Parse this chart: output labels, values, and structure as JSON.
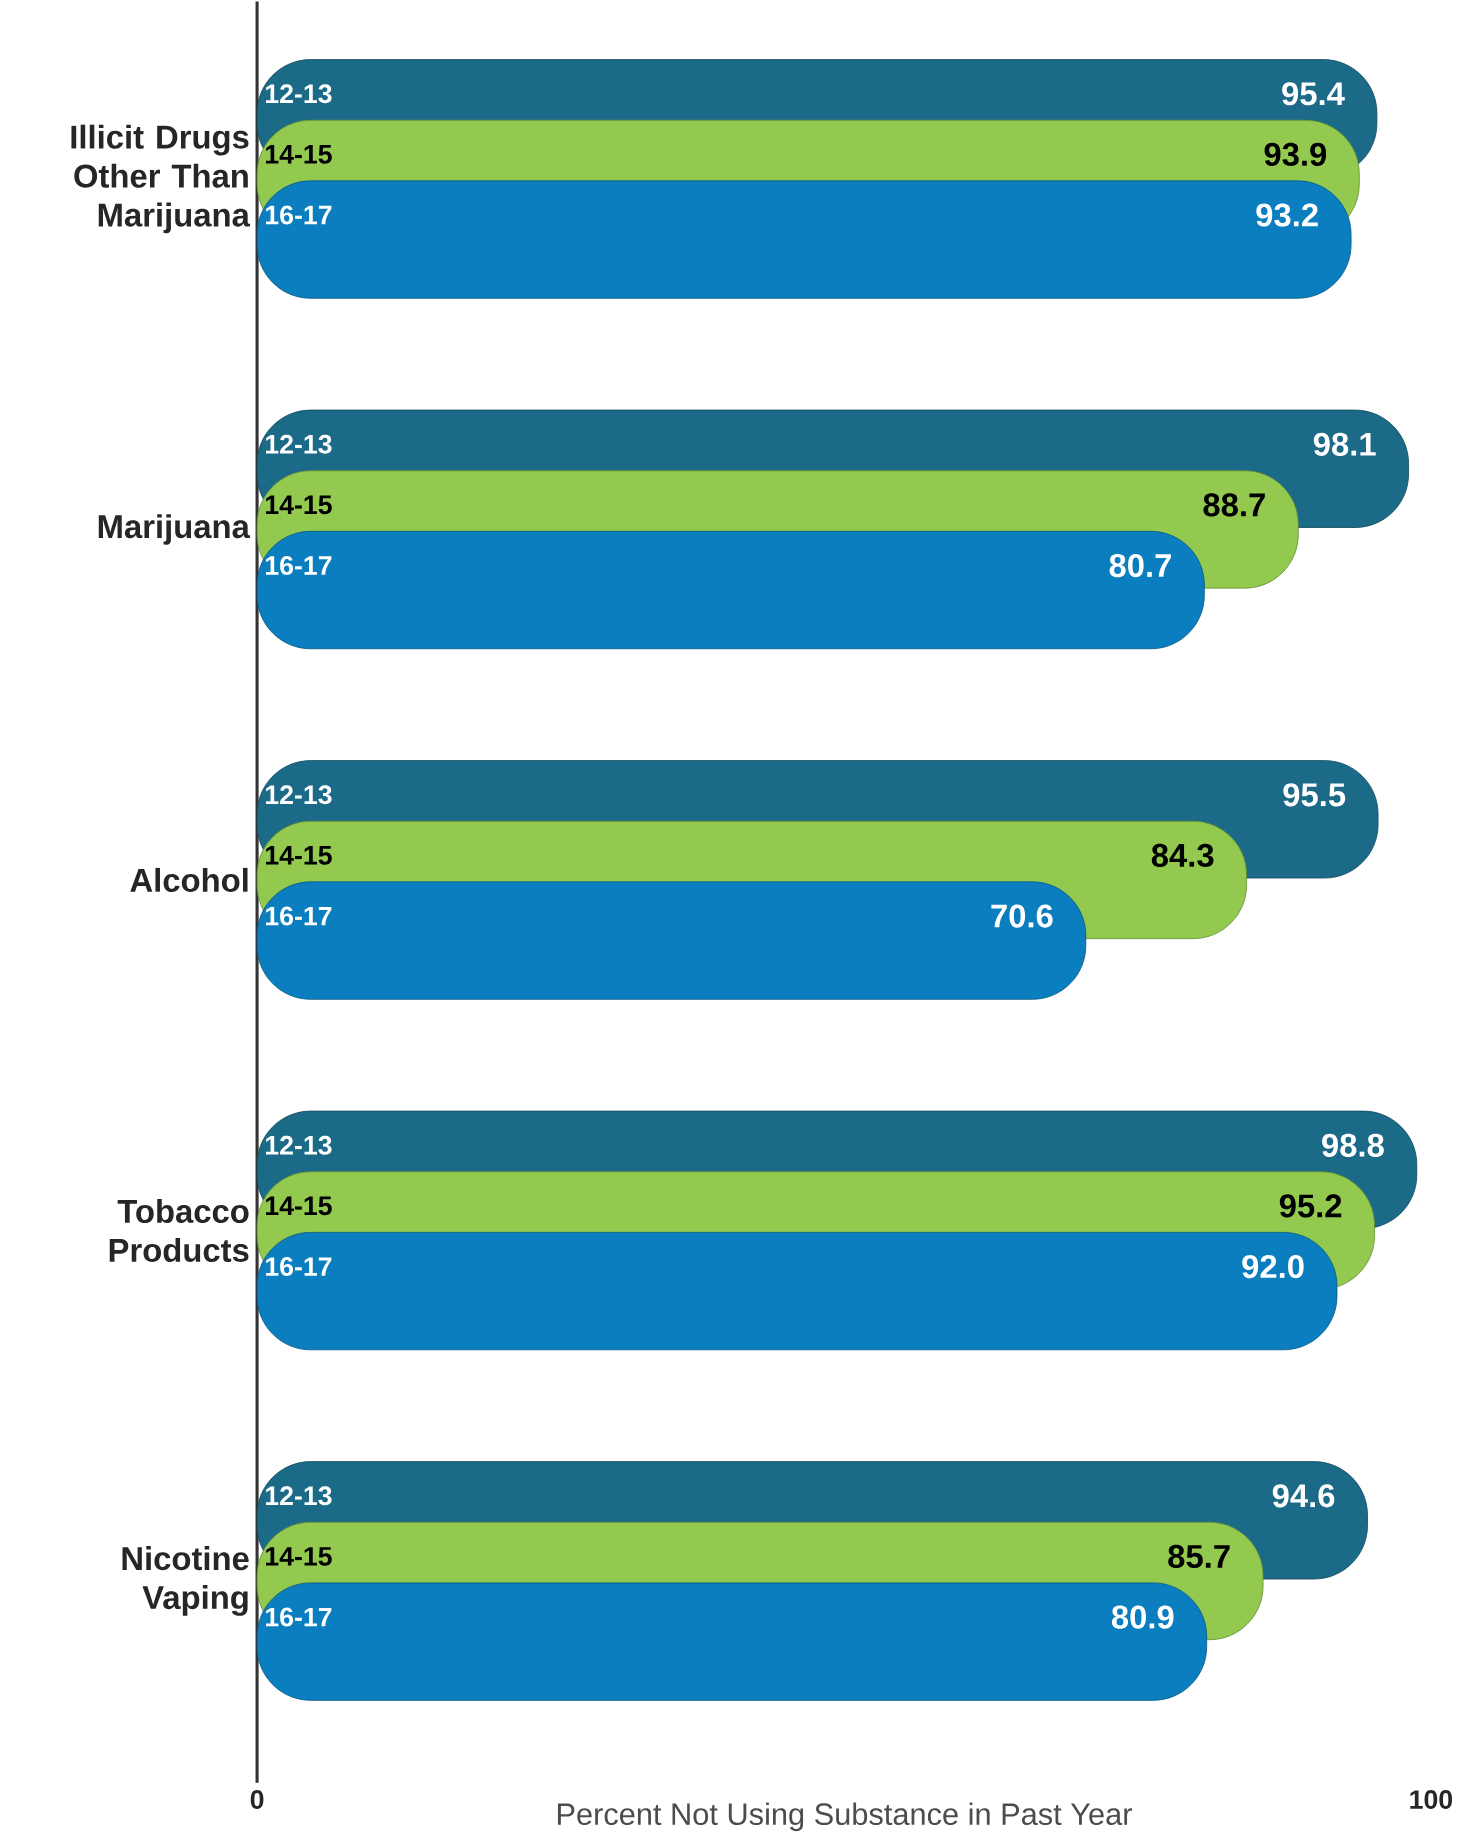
{
  "chart_data": {
    "type": "bar",
    "orientation": "horizontal",
    "categories": [
      "Illicit Drugs Other Than Marijuana",
      "Marijuana",
      "Alcohol",
      "Tobacco Products",
      "Nicotine Vaping"
    ],
    "series": [
      {
        "name": "12-13",
        "color": "#1b6a87",
        "values": [
          95.4,
          98.1,
          95.5,
          98.8,
          94.6
        ],
        "value_labels": [
          "95.4",
          "98.1",
          "95.5",
          "98.8",
          "94.6"
        ]
      },
      {
        "name": "14-15",
        "color": "#92c94e",
        "values": [
          93.9,
          88.7,
          84.3,
          95.2,
          85.7
        ],
        "value_labels": [
          "93.9",
          "88.7",
          "84.3",
          "95.2",
          "85.7"
        ]
      },
      {
        "name": "16-17",
        "color": "#0a7ebf",
        "values": [
          93.2,
          80.7,
          70.6,
          92.0,
          80.9
        ],
        "value_labels": [
          "93.2",
          "80.7",
          "70.6",
          "92.0",
          "80.9"
        ]
      }
    ],
    "xlim": [
      0,
      100
    ],
    "xticks": [
      0,
      100
    ],
    "xlabel": "Percent Not Using Substance in Past Year"
  }
}
